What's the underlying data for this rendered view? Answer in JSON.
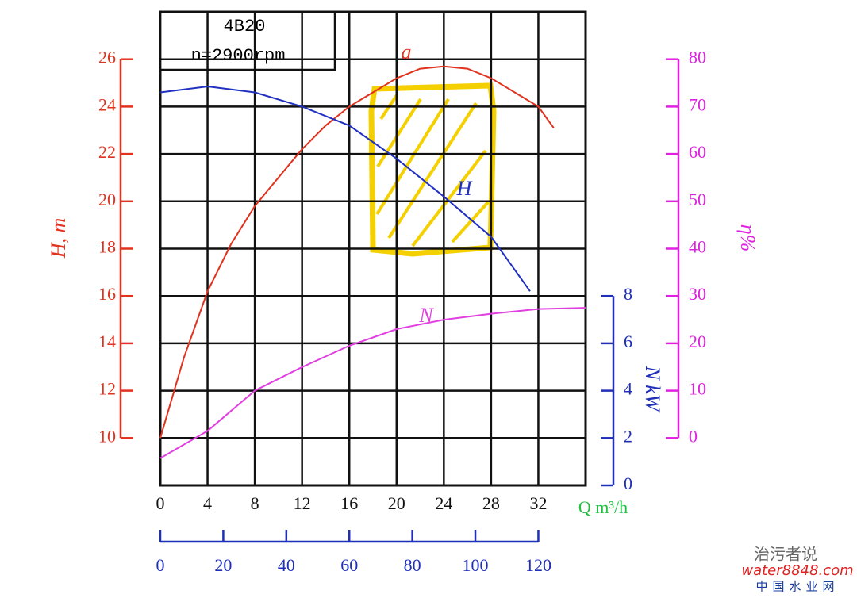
{
  "chart_data": {
    "type": "line",
    "title": "4B20",
    "subtitle": "n=2900rpm",
    "x_label": "Q m³/h",
    "y_label": "H, m",
    "y2_label": "η%",
    "y3_label": "N kW",
    "xlim": [
      0,
      36
    ],
    "xticks": [
      0,
      4,
      8,
      12,
      16,
      20,
      24,
      28,
      32
    ],
    "x2lim": [
      0,
      120
    ],
    "x2ticks": [
      0,
      20,
      40,
      60,
      80,
      100,
      120
    ],
    "ylim": [
      8,
      28
    ],
    "yticks": [
      10,
      12,
      14,
      16,
      18,
      20,
      22,
      24,
      26
    ],
    "y_color": "#e0321e",
    "y2lim": [
      -10,
      90
    ],
    "y2ticks": [
      0,
      10,
      20,
      30,
      40,
      50,
      60,
      70,
      80
    ],
    "y2_color": "#e020e0",
    "y3lim": [
      0,
      20
    ],
    "y3ticks": [
      0,
      2,
      4,
      6,
      8
    ],
    "y3_color": "#1f2fb8",
    "x_color": "#20c040",
    "x2_color": "#1f2fb8",
    "grid": true,
    "series": [
      {
        "label": "a",
        "color": "#e0321e",
        "axis": "y2",
        "x": [
          0,
          2,
          4,
          6,
          8,
          10,
          12,
          14,
          16,
          18,
          20,
          22,
          24,
          26,
          28,
          30,
          32,
          33.3
        ],
        "values": [
          0,
          17,
          31,
          41,
          49,
          55,
          61,
          66,
          70,
          73,
          76,
          78,
          78.5,
          78,
          76,
          73,
          70,
          65.5
        ]
      },
      {
        "label": "H",
        "color": "#2030c0",
        "axis": "y",
        "x": [
          0,
          4,
          8,
          12,
          16,
          20,
          24,
          28,
          31.3
        ],
        "values": [
          24.6,
          24.85,
          24.6,
          24.0,
          23.2,
          21.8,
          20.2,
          18.5,
          16.2
        ]
      },
      {
        "label": "N",
        "color": "#e040e0",
        "axis": "y3",
        "x": [
          0,
          4,
          8,
          12,
          16,
          20,
          24,
          28,
          32,
          36
        ],
        "values": [
          1.15,
          2.3,
          4.0,
          5.0,
          5.9,
          6.6,
          7.0,
          7.25,
          7.45,
          7.5
        ]
      }
    ]
  },
  "watermark": {
    "account": "治污者说",
    "site": "water8848.com",
    "site_name": "中国水业网"
  }
}
